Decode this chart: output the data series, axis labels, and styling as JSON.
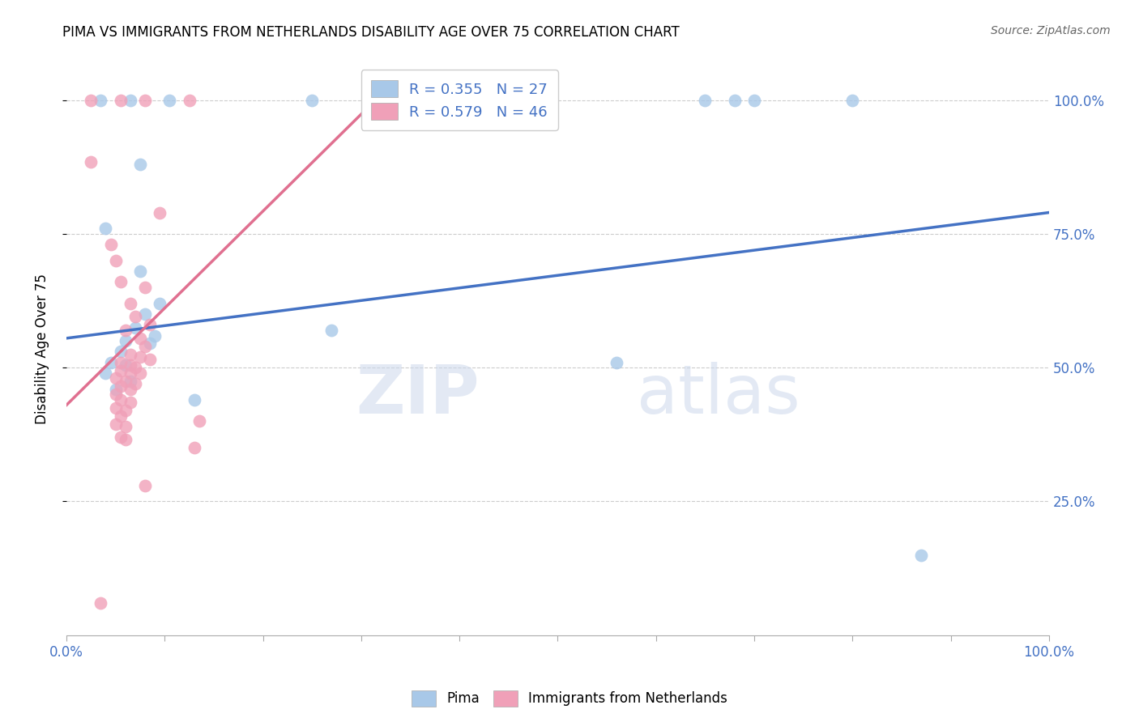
{
  "title": "PIMA VS IMMIGRANTS FROM NETHERLANDS DISABILITY AGE OVER 75 CORRELATION CHART",
  "source": "Source: ZipAtlas.com",
  "ylabel_label": "Disability Age Over 75",
  "x_tick_labels": [
    "0.0%",
    "100.0%"
  ],
  "x_tick_vals": [
    0.0,
    100.0
  ],
  "y_tick_labels": [
    "25.0%",
    "50.0%",
    "75.0%",
    "100.0%"
  ],
  "y_tick_vals": [
    25.0,
    50.0,
    75.0,
    100.0
  ],
  "xlim": [
    0.0,
    100.0
  ],
  "ylim": [
    0.0,
    107.0
  ],
  "legend_labels_bottom": [
    "Pima",
    "Immigrants from Netherlands"
  ],
  "pima_color": "#a8c8e8",
  "netherlands_color": "#f0a0b8",
  "pima_line_color": "#4472c4",
  "netherlands_line_color": "#e07090",
  "watermark_zip": "ZIP",
  "watermark_atlas": "atlas",
  "pima_line": [
    0.0,
    55.5,
    100.0,
    79.0
  ],
  "netherlands_line_x": [
    0.0,
    32.0
  ],
  "netherlands_line_y": [
    43.0,
    101.0
  ],
  "pima_points": [
    [
      3.5,
      100.0
    ],
    [
      6.5,
      100.0
    ],
    [
      10.5,
      100.0
    ],
    [
      25.0,
      100.0
    ],
    [
      65.0,
      100.0
    ],
    [
      68.0,
      100.0
    ],
    [
      70.0,
      100.0
    ],
    [
      80.0,
      100.0
    ],
    [
      7.5,
      88.0
    ],
    [
      4.0,
      76.0
    ],
    [
      7.5,
      68.0
    ],
    [
      9.5,
      62.0
    ],
    [
      8.0,
      60.0
    ],
    [
      7.0,
      57.5
    ],
    [
      9.0,
      56.0
    ],
    [
      8.5,
      54.5
    ],
    [
      6.0,
      55.0
    ],
    [
      5.5,
      53.0
    ],
    [
      4.5,
      51.0
    ],
    [
      6.0,
      50.5
    ],
    [
      4.0,
      49.0
    ],
    [
      6.5,
      47.5
    ],
    [
      5.0,
      46.0
    ],
    [
      13.0,
      44.0
    ],
    [
      27.0,
      57.0
    ],
    [
      56.0,
      51.0
    ],
    [
      87.0,
      15.0
    ]
  ],
  "netherlands_points": [
    [
      2.5,
      100.0
    ],
    [
      5.5,
      100.0
    ],
    [
      8.0,
      100.0
    ],
    [
      12.5,
      100.0
    ],
    [
      34.0,
      100.0
    ],
    [
      2.5,
      88.5
    ],
    [
      9.5,
      79.0
    ],
    [
      4.5,
      73.0
    ],
    [
      5.0,
      70.0
    ],
    [
      5.5,
      66.0
    ],
    [
      8.0,
      65.0
    ],
    [
      6.5,
      62.0
    ],
    [
      7.0,
      59.5
    ],
    [
      8.5,
      58.0
    ],
    [
      6.0,
      57.0
    ],
    [
      7.5,
      55.5
    ],
    [
      8.0,
      54.0
    ],
    [
      6.5,
      52.5
    ],
    [
      7.5,
      52.0
    ],
    [
      8.5,
      51.5
    ],
    [
      5.5,
      51.0
    ],
    [
      6.5,
      50.5
    ],
    [
      7.0,
      50.0
    ],
    [
      5.5,
      49.5
    ],
    [
      6.5,
      49.0
    ],
    [
      7.5,
      49.0
    ],
    [
      5.0,
      48.0
    ],
    [
      6.0,
      47.5
    ],
    [
      7.0,
      47.0
    ],
    [
      5.5,
      46.5
    ],
    [
      6.5,
      46.0
    ],
    [
      5.0,
      45.0
    ],
    [
      5.5,
      44.0
    ],
    [
      6.5,
      43.5
    ],
    [
      5.0,
      42.5
    ],
    [
      6.0,
      42.0
    ],
    [
      5.5,
      41.0
    ],
    [
      5.0,
      39.5
    ],
    [
      6.0,
      39.0
    ],
    [
      5.5,
      37.0
    ],
    [
      6.0,
      36.5
    ],
    [
      13.5,
      40.0
    ],
    [
      13.0,
      35.0
    ],
    [
      8.0,
      28.0
    ],
    [
      3.5,
      6.0
    ]
  ]
}
